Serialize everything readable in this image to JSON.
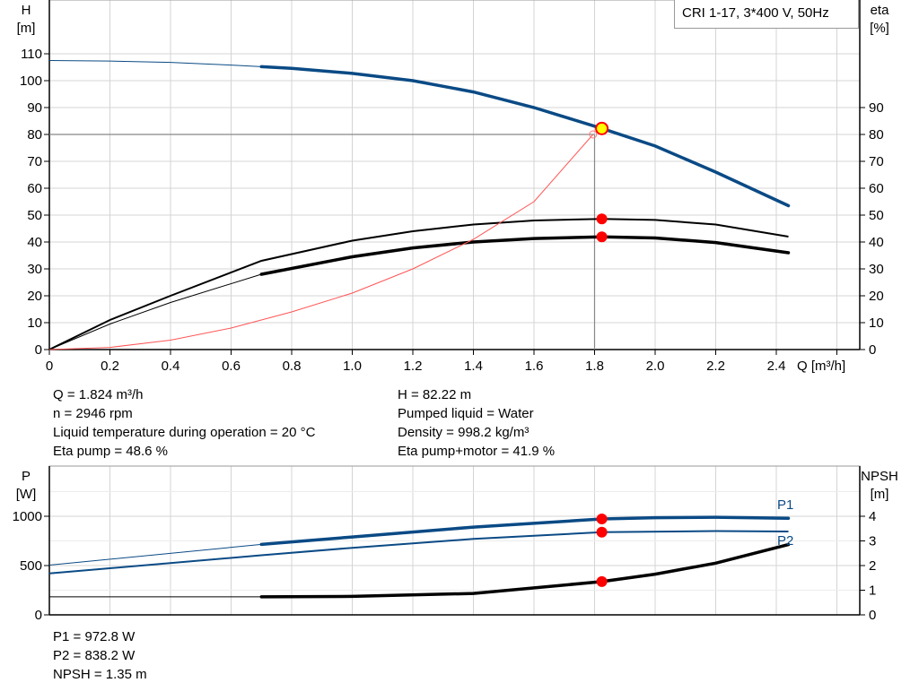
{
  "chart_data": [
    {
      "type": "line",
      "title": "",
      "legend": "CRI 1-17, 3*400 V, 50Hz",
      "legend_placement": "top-right",
      "xlabel": "Q [m³/h]",
      "ylabel_left": [
        "H",
        "[m]"
      ],
      "ylabel_right": [
        "eta",
        "[%]"
      ],
      "xlim": [
        0,
        2.68
      ],
      "ylim": [
        0,
        130
      ],
      "ylim_right": [
        0,
        130
      ],
      "x_ticks": [
        0,
        0.2,
        0.4,
        0.6,
        0.8,
        1.0,
        1.2,
        1.4,
        1.6,
        1.8,
        2.0,
        2.2,
        2.4
      ],
      "x_tick_labels": [
        "0",
        "0.2",
        "0.4",
        "0.6",
        "0.8",
        "1.0",
        "1.2",
        "1.4",
        "1.6",
        "1.8",
        "2.0",
        "2.2",
        "2.4"
      ],
      "y_ticks": [
        0,
        10,
        20,
        30,
        40,
        50,
        60,
        70,
        80,
        90,
        100,
        110
      ],
      "y_ticks_right": [
        0,
        10,
        20,
        30,
        40,
        50,
        60,
        70,
        80,
        90
      ],
      "grid": true,
      "series": [
        {
          "id": "H",
          "axis": "left",
          "color": "#0a4a85",
          "thick_from": 0.7,
          "x": [
            0,
            0.2,
            0.4,
            0.6,
            0.7,
            0.8,
            1.0,
            1.2,
            1.4,
            1.6,
            1.824,
            2.0,
            2.2,
            2.44
          ],
          "y": [
            107.5,
            107.3,
            106.8,
            105.8,
            105.2,
            104.6,
            102.7,
            100,
            95.8,
            90,
            82.22,
            75.7,
            66,
            53.5
          ]
        },
        {
          "id": "eta_pump",
          "axis": "right",
          "color": "#000000",
          "thick_from": null,
          "x": [
            0,
            0.2,
            0.4,
            0.7,
            1.0,
            1.2,
            1.4,
            1.6,
            1.824,
            2.0,
            2.2,
            2.44
          ],
          "y": [
            0,
            11,
            20,
            33,
            40.5,
            44,
            46.5,
            48,
            48.6,
            48.2,
            46.5,
            42
          ]
        },
        {
          "id": "eta_pump_motor",
          "axis": "right",
          "color": "#000000",
          "thick_from": 0.7,
          "x": [
            0,
            0.2,
            0.4,
            0.7,
            1.0,
            1.2,
            1.4,
            1.6,
            1.824,
            2.0,
            2.2,
            2.44
          ],
          "y": [
            0,
            9.5,
            17.5,
            28,
            34.5,
            37.8,
            40,
            41.3,
            41.9,
            41.5,
            39.8,
            36
          ]
        },
        {
          "id": "system",
          "axis": "left",
          "color": "#ff5555",
          "thin": true,
          "x": [
            0,
            0.2,
            0.4,
            0.6,
            0.8,
            1.0,
            1.2,
            1.4,
            1.6,
            1.795
          ],
          "y": [
            0,
            0.8,
            3.5,
            8,
            14,
            21,
            30,
            41,
            55,
            80
          ]
        }
      ],
      "crosshair": {
        "x": 1.8,
        "y": 80
      },
      "duty_point": {
        "x": 1.824,
        "y": 82.22
      },
      "markers": [
        {
          "x": 1.824,
          "y": 48.6,
          "axis": "right"
        },
        {
          "x": 1.824,
          "y": 41.9,
          "axis": "right"
        }
      ]
    },
    {
      "type": "line",
      "title": "",
      "ylabel_left": [
        "P",
        "[W]"
      ],
      "ylabel_right": [
        "NPSH",
        "[m]"
      ],
      "xlim": [
        0,
        2.68
      ],
      "ylim": [
        0,
        1500
      ],
      "ylim_right": [
        0,
        6
      ],
      "y_ticks": [
        0,
        500,
        1000
      ],
      "y_ticks_right": [
        0,
        1,
        2,
        3,
        4
      ],
      "grid": true,
      "series": [
        {
          "id": "P1",
          "name": "P1",
          "axis": "left",
          "color": "#0a4a85",
          "thick_from": 0.7,
          "x": [
            0,
            0.7,
            1.0,
            1.4,
            1.824,
            2.0,
            2.2,
            2.44
          ],
          "y": [
            505,
            715,
            790,
            890,
            972.8,
            985,
            990,
            980
          ]
        },
        {
          "id": "P2",
          "name": "P2",
          "axis": "left",
          "color": "#0a4a85",
          "thick_from": null,
          "x": [
            0,
            0.7,
            1.0,
            1.4,
            1.824,
            2.2,
            2.44
          ],
          "y": [
            420,
            605,
            680,
            770,
            838.2,
            850,
            845
          ]
        },
        {
          "id": "NPSH",
          "axis": "right",
          "color": "#000000",
          "thick_from": 0.7,
          "x": [
            0,
            0.7,
            1.0,
            1.4,
            1.824,
            2.0,
            2.2,
            2.44
          ],
          "y": [
            0.73,
            0.73,
            0.75,
            0.87,
            1.35,
            1.65,
            2.1,
            2.85
          ]
        }
      ],
      "markers": [
        {
          "x": 1.824,
          "y": 972.8,
          "axis": "left"
        },
        {
          "x": 1.824,
          "y": 838.2,
          "axis": "left"
        },
        {
          "x": 1.824,
          "y": 1.35,
          "axis": "right"
        }
      ]
    }
  ],
  "readout_top_left": [
    "Q = 1.824 m³/h",
    "n = 2946 rpm",
    "Liquid temperature during operation = 20 °C",
    "Eta pump = 48.6 %"
  ],
  "readout_top_right": [
    "H = 82.22 m",
    "Pumped liquid = Water",
    "Density = 998.2 kg/m³",
    "Eta pump+motor = 41.9 %"
  ],
  "readout_bottom": [
    "P1 = 972.8 W",
    "P2 = 838.2 W",
    "NPSH = 1.35 m"
  ]
}
